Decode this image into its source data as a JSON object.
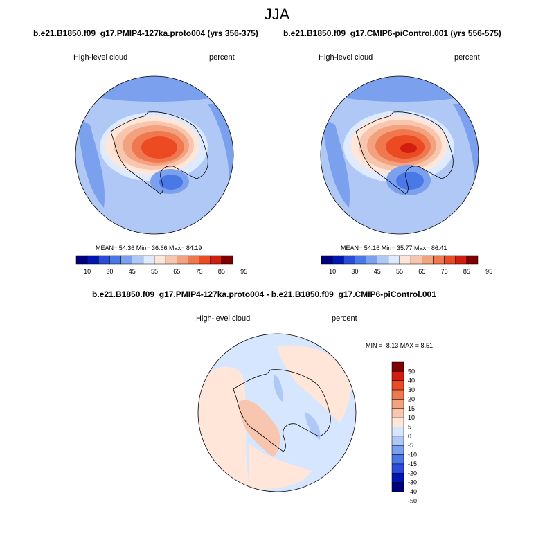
{
  "main_title": "JJA",
  "colors": {
    "seq": [
      "#00007f",
      "#0016b4",
      "#2a4bdc",
      "#4a78e6",
      "#7aa0ee",
      "#b0c8f6",
      "#ddeaff",
      "#ffe6d8",
      "#f8c6ae",
      "#f3a27f",
      "#ef784f",
      "#ec4a22",
      "#d21e10",
      "#7f0000"
    ],
    "diff": [
      "#00007f",
      "#0016b4",
      "#2a4bdc",
      "#4a78e6",
      "#7aa0ee",
      "#b0c8f6",
      "#d7e6ff",
      "#ffe6d8",
      "#f8c6ae",
      "#f3a27f",
      "#ef784f",
      "#ec4a22",
      "#d21e10",
      "#7f0000"
    ]
  },
  "chart_data": [
    {
      "type": "heatmap",
      "title": "b.e21.B1850.f09_g17.PMIP4-127ka.proto004 (yrs 356-375)",
      "variable": "High-level cloud",
      "units": "percent",
      "stats": "MEAN=  54.36  Min=  36.66  Max=  84.19",
      "mean": 54.36,
      "min": 36.66,
      "max": 84.19,
      "colorbar_ticks": [
        "10",
        "30",
        "45",
        "55",
        "65",
        "75",
        "85",
        "95"
      ]
    },
    {
      "type": "heatmap",
      "title": "b.e21.B1850.f09_g17.CMIP6-piControl.001 (yrs 556-575)",
      "variable": "High-level cloud",
      "units": "percent",
      "stats": "MEAN=  54.16  Min=  35.77  Max=  86.41",
      "mean": 54.16,
      "min": 35.77,
      "max": 86.41,
      "colorbar_ticks": [
        "10",
        "30",
        "45",
        "55",
        "65",
        "75",
        "85",
        "95"
      ]
    },
    {
      "type": "heatmap",
      "title": "b.e21.B1850.f09_g17.PMIP4-127ka.proto004 - b.e21.B1850.f09_g17.CMIP6-piControl.001",
      "variable": "High-level cloud",
      "units": "percent",
      "stats": "MIN =  -8.13 MAX =   8.51",
      "min": -8.13,
      "max": 8.51,
      "colorbar_ticks": [
        "50",
        "40",
        "30",
        "20",
        "15",
        "10",
        "5",
        "0",
        "-5",
        "-10",
        "-15",
        "-20",
        "-30",
        "-40",
        "-50"
      ]
    }
  ]
}
